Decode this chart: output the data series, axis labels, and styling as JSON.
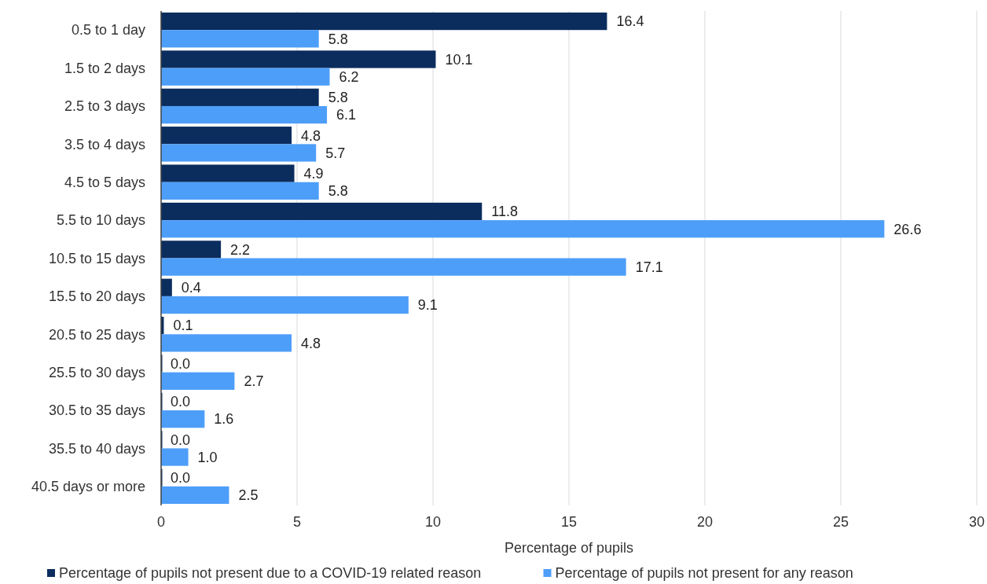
{
  "chart_data": {
    "type": "bar",
    "orientation": "horizontal",
    "xlabel": "Percentage of pupils",
    "categories": [
      "0.5 to 1 day",
      "1.5 to 2 days",
      "2.5 to 3 days",
      "3.5 to 4 days",
      "4.5 to 5 days",
      "5.5 to 10 days",
      "10.5 to 15 days",
      "15.5 to 20 days",
      "20.5 to 25 days",
      "25.5 to 30 days",
      "30.5 to 35 days",
      "35.5 to 40 days",
      "40.5 days or more"
    ],
    "series": [
      {
        "name": "Percentage of pupils not present due to a COVID-19 related reason",
        "color": "#0b2d5e",
        "values": [
          16.4,
          10.1,
          5.8,
          4.8,
          4.9,
          11.8,
          2.2,
          0.4,
          0.1,
          0,
          0,
          0,
          0
        ],
        "value_labels": [
          "16.4",
          "10.1",
          "5.8",
          "4.8",
          "4.9",
          "11.8",
          "2.2",
          "0.4",
          "0.1",
          "0.0",
          "0.0",
          "0.0",
          "0.0"
        ]
      },
      {
        "name": "Percentage of pupils not present for any reason",
        "color": "#4d9ef9",
        "values": [
          5.8,
          6.2,
          6.1,
          5.7,
          5.8,
          26.6,
          17.1,
          9.1,
          4.8,
          2.7,
          1.6,
          1.0,
          2.5
        ],
        "value_labels": [
          "5.8",
          "6.2",
          "6.1",
          "5.7",
          "5.8",
          "26.6",
          "17.1",
          "9.1",
          "4.8",
          "2.7",
          "1.6",
          "1.0",
          "2.5"
        ]
      }
    ],
    "xlim": [
      0,
      30
    ],
    "xticks": [
      0,
      5,
      10,
      15,
      20,
      25,
      30
    ],
    "grid": "x",
    "legend": "bottom"
  }
}
